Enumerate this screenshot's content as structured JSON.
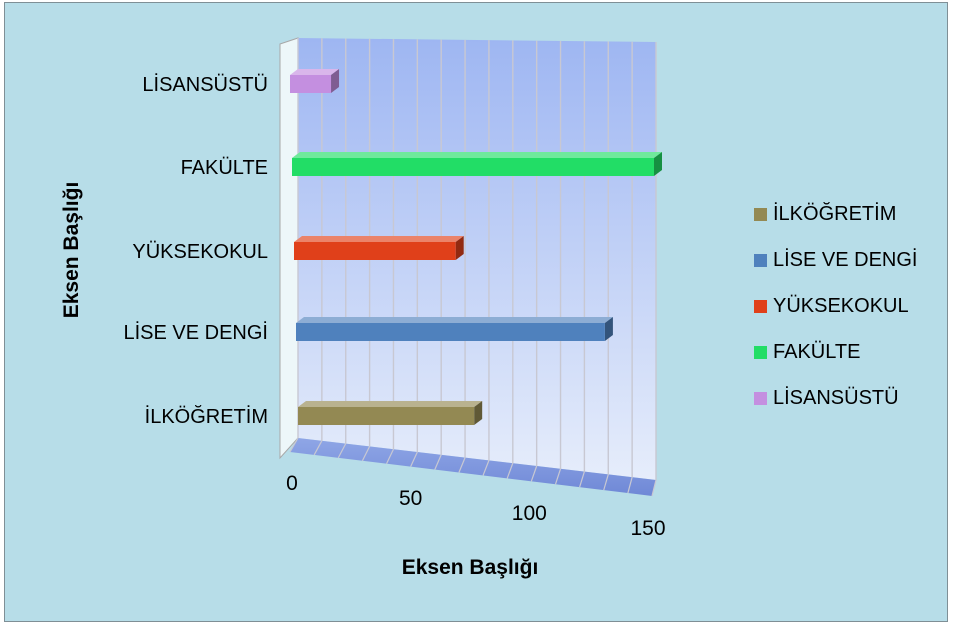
{
  "chart_data": {
    "type": "bar",
    "orientation": "horizontal",
    "style": "3d",
    "categories": [
      "İLKÖĞRETİM",
      "LİSE VE DENGİ",
      "YÜKSEKOKUL",
      "FAKÜLTE",
      "LİSANSÜSTÜ"
    ],
    "values": [
      73,
      128,
      67,
      150,
      17
    ],
    "colors": [
      "#938953",
      "#4f81bd",
      "#e0401a",
      "#22dd66",
      "#c48fe0"
    ],
    "xlabel": "Eksen Başlığı",
    "ylabel": "Eksen Başlığı",
    "xlim": [
      0,
      150
    ],
    "xticks": [
      0,
      50,
      100,
      150
    ],
    "grid": true,
    "legend_position": "right",
    "legend": [
      "İLKÖĞRETİM",
      "LİSE VE DENGİ",
      "YÜKSEKOKUL",
      "FAKÜLTE",
      "LİSANSÜSTÜ"
    ]
  }
}
